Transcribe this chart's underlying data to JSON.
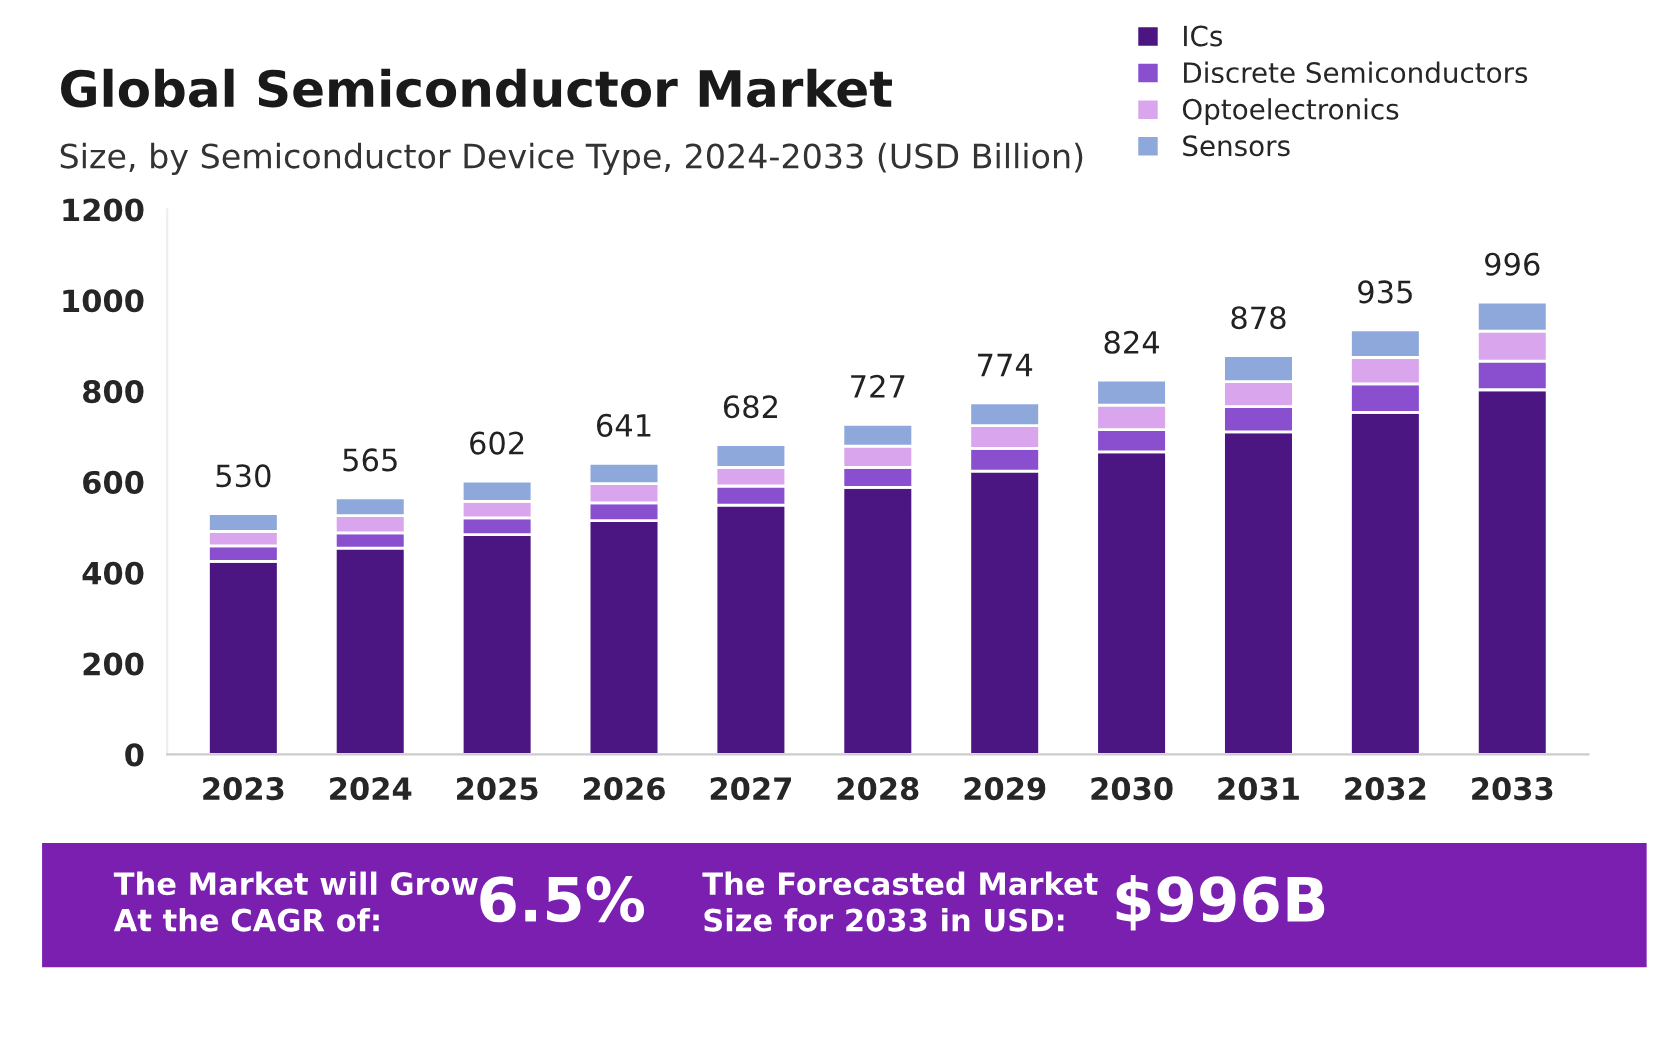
{
  "chart_data": {
    "type": "bar",
    "title": "Global Semiconductor Market",
    "subtitle": "Size, by Semiconductor Device Type, 2024-2033 (USD Billion)",
    "categories": [
      "2023",
      "2024",
      "2025",
      "2026",
      "2027",
      "2028",
      "2029",
      "2030",
      "2031",
      "2032",
      "2033"
    ],
    "stacked": true,
    "series": [
      {
        "name": "ICs",
        "color": "#4b1582",
        "values": [
          425,
          454,
          484,
          515,
          549,
          588,
          624,
          666,
          710,
          753,
          803
        ]
      },
      {
        "name": "Discrete Semiconductors",
        "color": "#8a4fcf",
        "values": [
          34,
          34,
          37,
          39,
          42,
          44,
          50,
          49,
          56,
          63,
          63
        ]
      },
      {
        "name": "Optoelectronics",
        "color": "#d9a6ee",
        "values": [
          32,
          38,
          36,
          42,
          41,
          47,
          50,
          54,
          55,
          58,
          66
        ]
      },
      {
        "name": "Sensors",
        "color": "#8fa8dc",
        "values": [
          39,
          39,
          45,
          45,
          50,
          48,
          50,
          55,
          57,
          61,
          64
        ]
      }
    ],
    "totals": [
      "530",
      "565",
      "602",
      "641",
      "682",
      "727",
      "774",
      "824",
      "878",
      "935",
      "996"
    ],
    "ylim": [
      0,
      1200
    ],
    "yticks": [
      0,
      200,
      400,
      600,
      800,
      1000,
      1200
    ],
    "grid": false,
    "legend": "top right",
    "annotations": [
      "The Market will Grow\nAt the CAGR of:",
      "6.5%",
      "The Forecasted Market\nSize for 2033 in USD:",
      "$996B"
    ]
  }
}
